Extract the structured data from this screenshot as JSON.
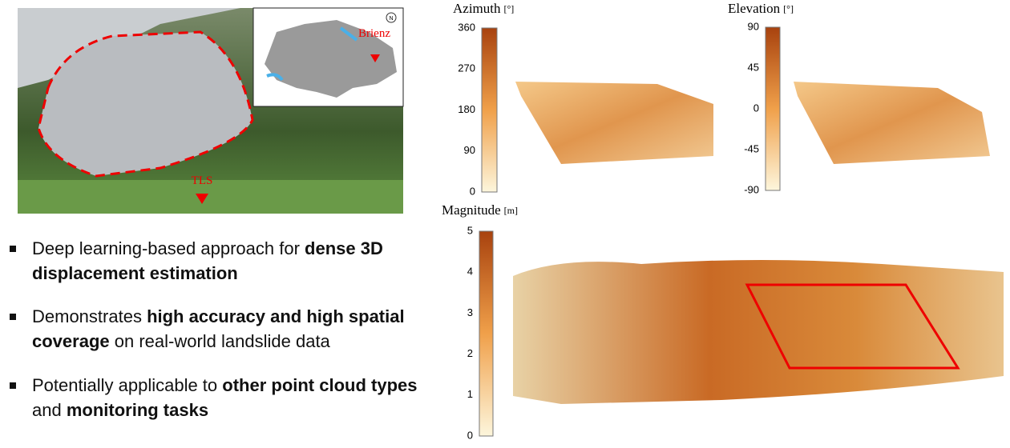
{
  "photo": {
    "label_tls": "TLS",
    "label_brienz": "Brienz",
    "north": "N"
  },
  "bullets": [
    [
      {
        "text": "Deep learning-based approach for ",
        "bold": false
      },
      {
        "text": "dense 3D displacement estimation",
        "bold": true
      }
    ],
    [
      {
        "text": "Demonstrates ",
        "bold": false
      },
      {
        "text": "high accuracy and high spatial coverage",
        "bold": true
      },
      {
        "text": " on real-world landslide data",
        "bold": false
      }
    ],
    [
      {
        "text": "Potentially applicable to ",
        "bold": false
      },
      {
        "text": "other point cloud types",
        "bold": true
      },
      {
        "text": " and ",
        "bold": false
      },
      {
        "text": "monitoring tasks",
        "bold": true
      }
    ]
  ],
  "panels": [
    {
      "title": "Azimuth",
      "unit": "[°]",
      "ticks": [
        360,
        270,
        180,
        90,
        0
      ]
    },
    {
      "title": "Elevation",
      "unit": "[°]",
      "ticks": [
        90,
        45,
        0,
        -45,
        -90
      ]
    },
    {
      "title": "Magnitude",
      "unit": "[m]",
      "ticks": [
        5,
        4,
        3,
        2,
        1,
        0
      ]
    }
  ]
}
